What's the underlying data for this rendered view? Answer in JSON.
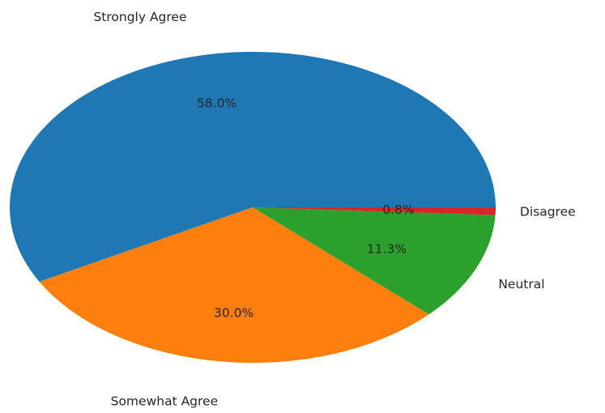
{
  "chart_data": {
    "type": "pie",
    "categories": [
      "Strongly Agree",
      "Somewhat Agree",
      "Neutral",
      "Disagree"
    ],
    "values": [
      58.0,
      30.0,
      11.3,
      0.8
    ],
    "value_labels": [
      "58.0%",
      "30.0%",
      "11.3%",
      "0.8%"
    ],
    "colors": [
      "#1f77b4",
      "#ff7f0e",
      "#2ca02c",
      "#d62728"
    ]
  }
}
